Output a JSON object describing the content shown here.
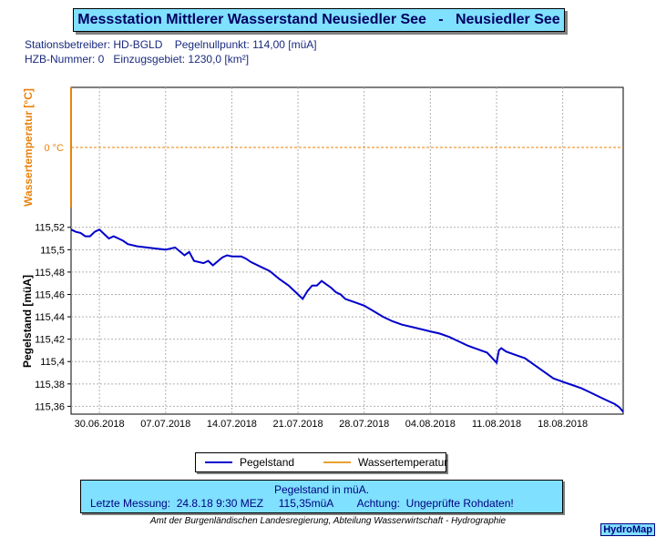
{
  "header": {
    "title": "Messstation Mittlerer Wasserstand Neusiedler See   -   Neusiedler See",
    "info_line1": "Stationsbetreiber: HD-BGLD    Pegelnullpunkt: 114,00 [müA]",
    "info_line2": "HZB-Nummer: 0   Einzugsgebiet: 1230,0 [km²]"
  },
  "chart_data": {
    "type": "line",
    "upper_panel": {
      "ylabel": "Wassertemperatur [°C]",
      "reference_label": "0 °C",
      "reference_value": 0,
      "color": "#e8820c"
    },
    "lower_panel": {
      "ylabel": "Pegelstand [müA]",
      "ylim": [
        115.353,
        115.532
      ],
      "yticks": [
        115.36,
        115.38,
        115.4,
        115.42,
        115.44,
        115.46,
        115.48,
        115.5,
        115.52
      ],
      "ytick_labels": [
        "115,36",
        "115,38",
        "115,4",
        "115,42",
        "115,44",
        "115,46",
        "115,48",
        "115,5",
        "115,52"
      ],
      "color": "#0000cc"
    },
    "xlim": [
      "2018-06-27T00:00",
      "2018-08-24T09:30"
    ],
    "xticks": [
      "2018-06-30",
      "2018-07-07",
      "2018-07-14",
      "2018-07-21",
      "2018-07-28",
      "2018-08-04",
      "2018-08-11",
      "2018-08-18"
    ],
    "xtick_labels": [
      "30.06.2018",
      "07.07.2018",
      "14.07.2018",
      "21.07.2018",
      "28.07.2018",
      "04.08.2018",
      "11.08.2018",
      "18.08.2018"
    ],
    "grid": true,
    "series": [
      {
        "name": "Pegelstand",
        "x": [
          "2018-06-27T00:00",
          "2018-06-27T12:00",
          "2018-06-28T00:00",
          "2018-06-28T12:00",
          "2018-06-29T00:00",
          "2018-06-29T12:00",
          "2018-06-30T00:00",
          "2018-06-30T12:00",
          "2018-07-01T00:00",
          "2018-07-01T12:00",
          "2018-07-02T00:00",
          "2018-07-02T12:00",
          "2018-07-03T00:00",
          "2018-07-04T00:00",
          "2018-07-05T00:00",
          "2018-07-06T00:00",
          "2018-07-07T00:00",
          "2018-07-08T00:00",
          "2018-07-09T00:00",
          "2018-07-09T12:00",
          "2018-07-10T00:00",
          "2018-07-11T00:00",
          "2018-07-11T12:00",
          "2018-07-12T00:00",
          "2018-07-13T00:00",
          "2018-07-13T12:00",
          "2018-07-14T00:00",
          "2018-07-15T00:00",
          "2018-07-15T12:00",
          "2018-07-16T00:00",
          "2018-07-17T00:00",
          "2018-07-18T00:00",
          "2018-07-19T00:00",
          "2018-07-20T00:00",
          "2018-07-21T00:00",
          "2018-07-21T12:00",
          "2018-07-22T00:00",
          "2018-07-22T12:00",
          "2018-07-23T00:00",
          "2018-07-23T12:00",
          "2018-07-24T00:00",
          "2018-07-24T12:00",
          "2018-07-25T00:00",
          "2018-07-25T12:00",
          "2018-07-26T00:00",
          "2018-07-27T00:00",
          "2018-07-28T00:00",
          "2018-07-29T00:00",
          "2018-07-30T00:00",
          "2018-07-31T00:00",
          "2018-08-01T00:00",
          "2018-08-02T00:00",
          "2018-08-03T00:00",
          "2018-08-04T00:00",
          "2018-08-05T00:00",
          "2018-08-06T00:00",
          "2018-08-07T00:00",
          "2018-08-08T00:00",
          "2018-08-09T00:00",
          "2018-08-10T00:00",
          "2018-08-11T00:00",
          "2018-08-11T06:00",
          "2018-08-11T12:00",
          "2018-08-12T00:00",
          "2018-08-13T00:00",
          "2018-08-14T00:00",
          "2018-08-15T00:00",
          "2018-08-16T00:00",
          "2018-08-17T00:00",
          "2018-08-18T00:00",
          "2018-08-19T00:00",
          "2018-08-20T00:00",
          "2018-08-21T00:00",
          "2018-08-22T00:00",
          "2018-08-23T00:00",
          "2018-08-23T12:00",
          "2018-08-24T00:00",
          "2018-08-24T09:30"
        ],
        "values": [
          115.518,
          115.516,
          115.515,
          115.512,
          115.512,
          115.516,
          115.518,
          115.514,
          115.51,
          115.512,
          115.51,
          115.508,
          115.505,
          115.503,
          115.502,
          115.501,
          115.5,
          115.502,
          115.495,
          115.498,
          115.49,
          115.488,
          115.49,
          115.486,
          115.493,
          115.495,
          115.494,
          115.494,
          115.492,
          115.489,
          115.485,
          115.481,
          115.474,
          115.468,
          115.46,
          115.456,
          115.463,
          115.468,
          115.468,
          115.472,
          115.469,
          115.466,
          115.462,
          115.46,
          115.456,
          115.453,
          115.45,
          115.445,
          115.44,
          115.436,
          115.433,
          115.431,
          115.429,
          115.427,
          115.425,
          115.422,
          115.418,
          115.414,
          115.411,
          115.408,
          115.399,
          115.41,
          115.412,
          115.409,
          115.406,
          115.403,
          115.397,
          115.391,
          115.385,
          115.382,
          115.379,
          115.376,
          115.372,
          115.368,
          115.364,
          115.362,
          115.359,
          115.355
        ]
      },
      {
        "name": "Wassertemperatur",
        "x": [],
        "values": []
      }
    ]
  },
  "legend": {
    "pegel": "Pegelstand",
    "temp": "Wassertemperatur"
  },
  "status": {
    "line1": "Pegelstand in müA.",
    "line2": "Letzte Messung:  24.8.18 9:30 MEZ     115,35müA        Achtung:  Ungeprüfte Rohdaten!"
  },
  "footer": "Amt der Burgenländischen Landesregierung, Abteilung Wasserwirtschaft - Hydrographie",
  "logo": "HydroMap"
}
